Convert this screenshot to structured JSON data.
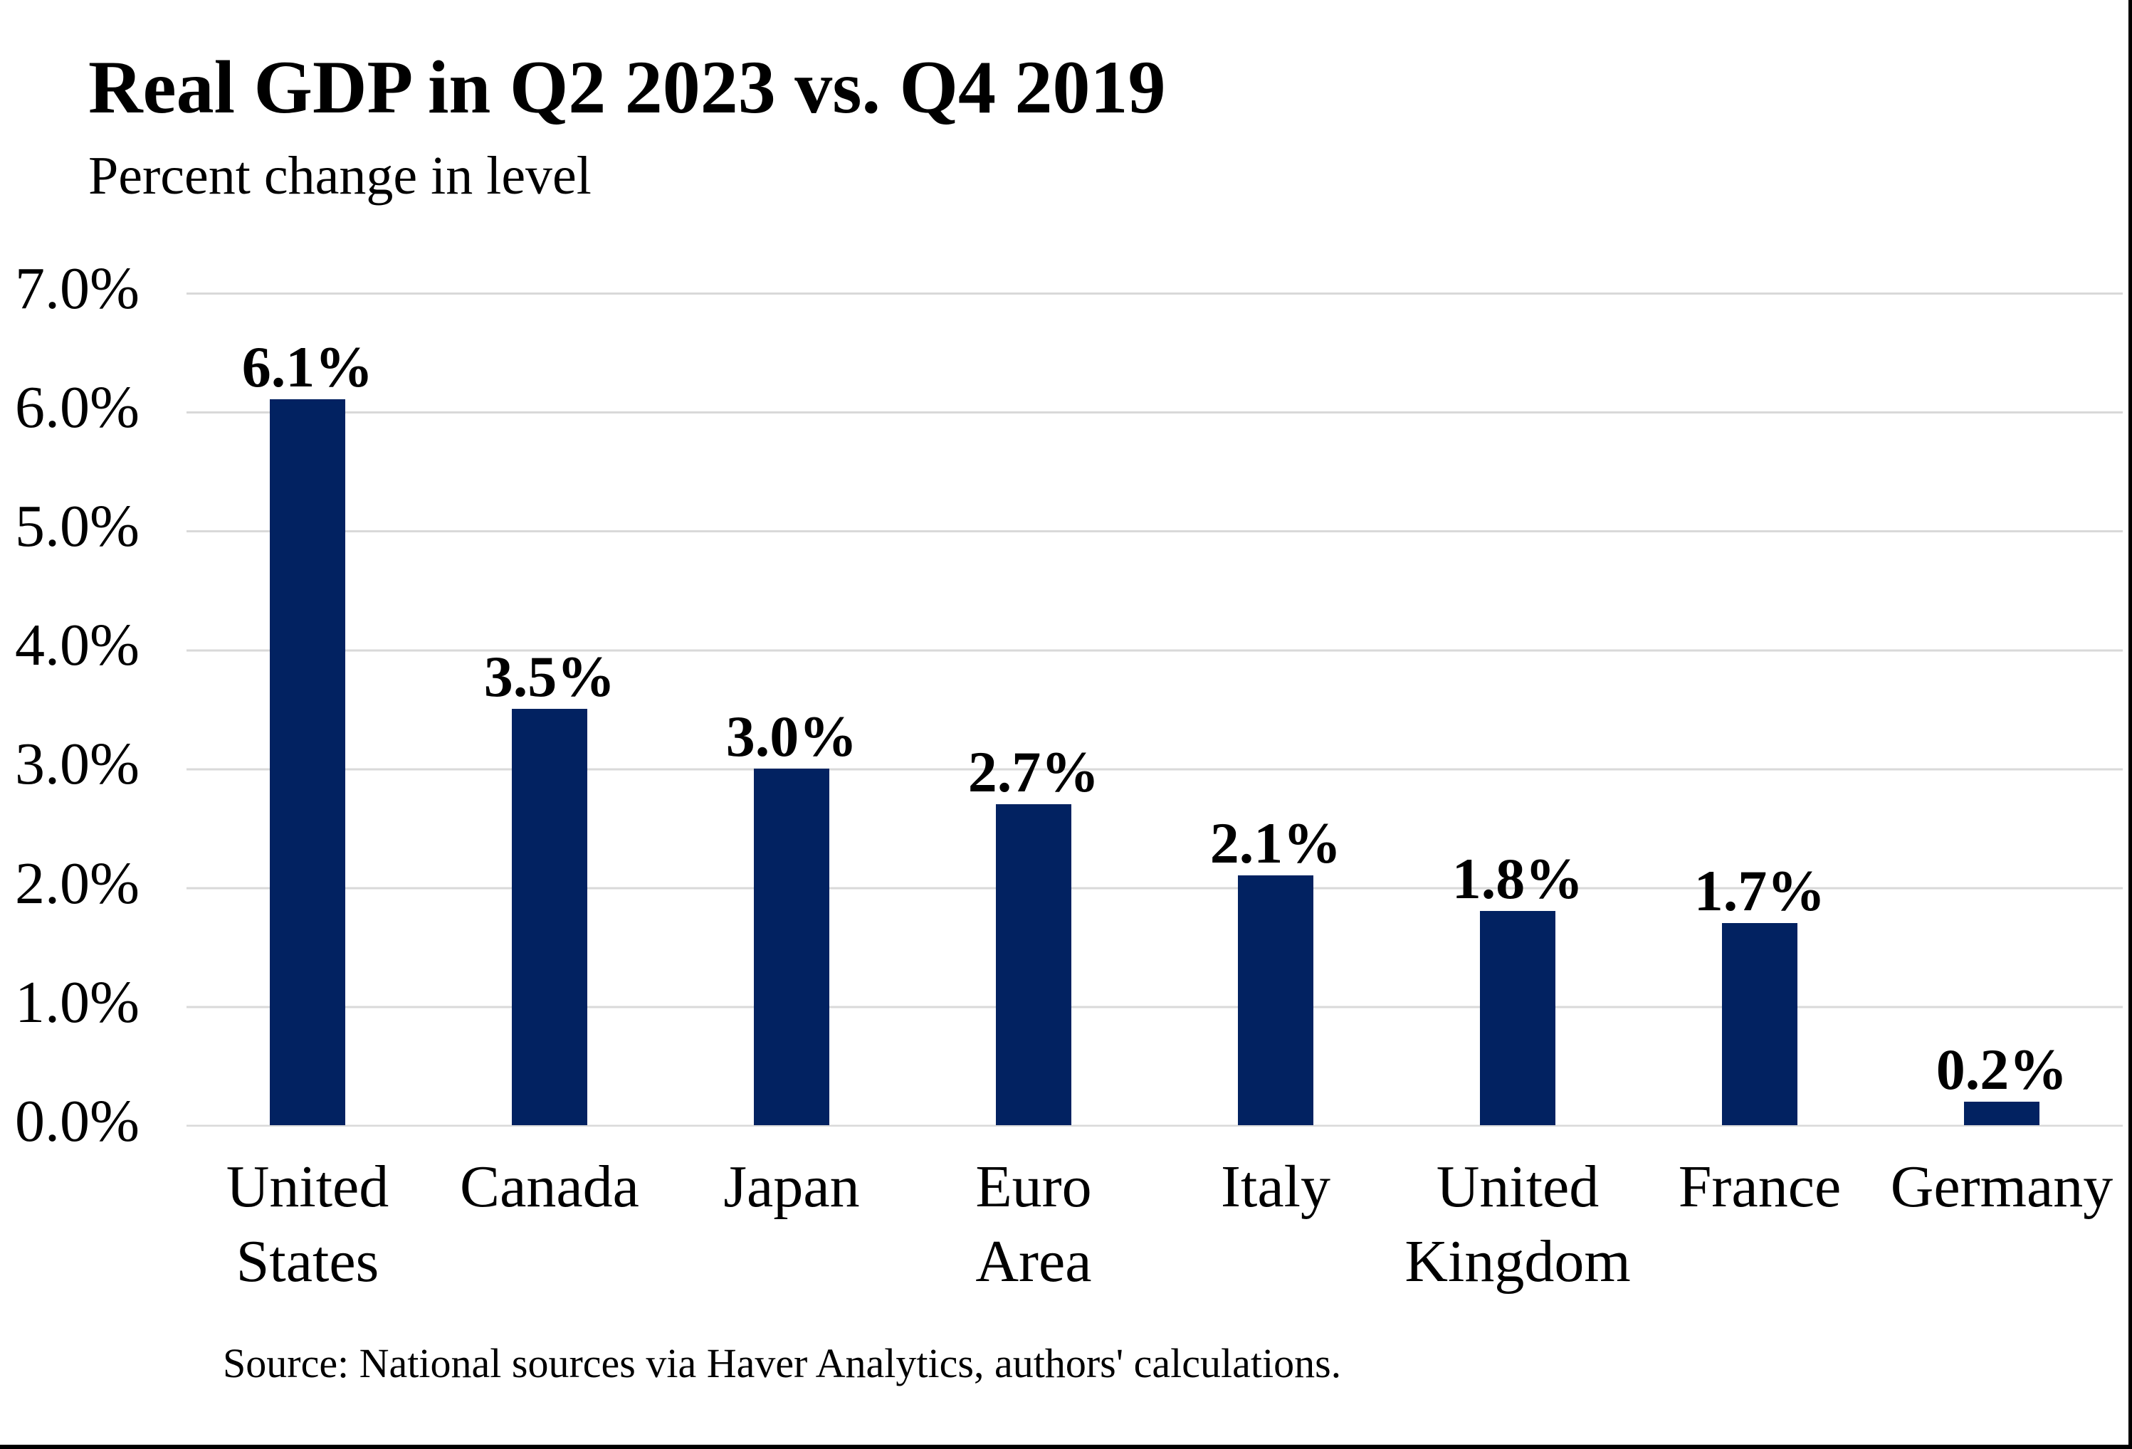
{
  "page": {
    "title": "Real GDP in Q2 2023 vs. Q4 2019",
    "subtitle": "Percent change in level",
    "source_note": "Source: National sources via Haver Analytics, authors' calculations."
  },
  "colors": {
    "bar": "#022261",
    "gridline": "#D9D9D9",
    "frame_border": "#000000",
    "text": "#000000"
  },
  "chart_data": {
    "type": "bar",
    "title": "Real GDP in Q2 2023 vs. Q4 2019",
    "subtitle": "Percent change in level",
    "categories": [
      "United\nStates",
      "Canada",
      "Japan",
      "Euro\nArea",
      "Italy",
      "United\nKingdom",
      "France",
      "Germany"
    ],
    "values": [
      6.1,
      3.5,
      3.0,
      2.7,
      2.1,
      1.8,
      1.7,
      0.2
    ],
    "value_labels": [
      "6.1%",
      "3.5%",
      "3.0%",
      "2.7%",
      "2.1%",
      "1.8%",
      "1.7%",
      "0.2%"
    ],
    "xlabel": "",
    "ylabel": "",
    "ylim": [
      0,
      7
    ],
    "ytick_step": 1.0,
    "ytick_labels": [
      "0.0%",
      "1.0%",
      "2.0%",
      "3.0%",
      "4.0%",
      "5.0%",
      "6.0%",
      "7.0%"
    ],
    "grid": "horizontal",
    "legend": "none",
    "source": "Source: National sources via Haver Analytics, authors' calculations."
  }
}
